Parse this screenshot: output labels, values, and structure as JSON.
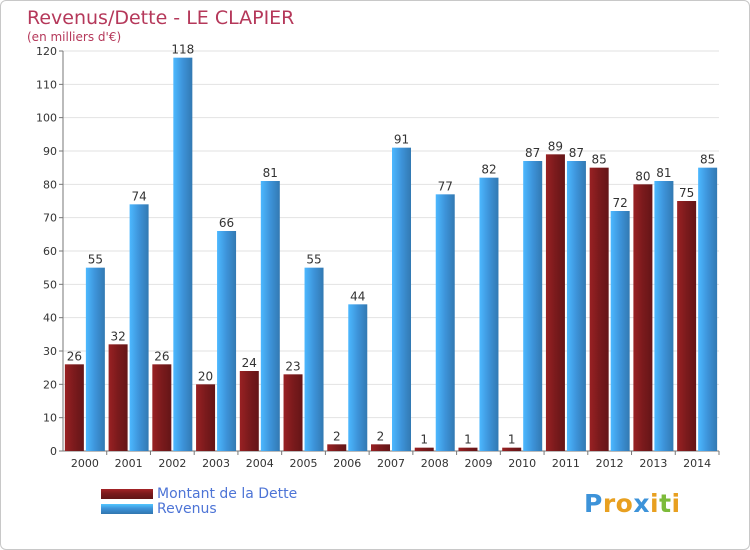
{
  "header": {
    "title": "Revenus/Dette - LE CLAPIER",
    "subtitle": "(en milliers d'€)"
  },
  "chart_data": {
    "type": "bar",
    "categories": [
      "2000",
      "2001",
      "2002",
      "2003",
      "2004",
      "2005",
      "2006",
      "2007",
      "2008",
      "2009",
      "2010",
      "2011",
      "2012",
      "2013",
      "2014"
    ],
    "series": [
      {
        "name": "Montant de la Dette",
        "color": "#7a1a1c",
        "values": [
          26,
          32,
          26,
          20,
          24,
          23,
          2,
          2,
          1,
          1,
          1,
          89,
          85,
          80,
          75
        ]
      },
      {
        "name": "Revenus",
        "color": "#3d93d9",
        "values": [
          55,
          74,
          118,
          66,
          81,
          55,
          44,
          91,
          77,
          82,
          87,
          87,
          72,
          81,
          85
        ]
      }
    ],
    "y_ticks": [
      0,
      10,
      20,
      30,
      40,
      50,
      60,
      70,
      80,
      90,
      100,
      110,
      120
    ],
    "ylim": [
      0,
      120
    ],
    "grid": true,
    "legend_position": "bottom-left",
    "data_labels": true
  },
  "legend": {
    "items": [
      {
        "label": "Montant de la Dette",
        "color": "#7a1a1c"
      },
      {
        "label": "Revenus",
        "color": "#3d93d9"
      }
    ]
  },
  "logo": {
    "text": "Proxiti",
    "letters": [
      "P",
      "r",
      "o",
      "x",
      "i",
      "t",
      "i"
    ],
    "letter_colors": [
      "#3d93d9",
      "#e8a020",
      "#e8a020",
      "#3d93d9",
      "#e8a020",
      "#7dbb3a",
      "#e8a020"
    ]
  }
}
